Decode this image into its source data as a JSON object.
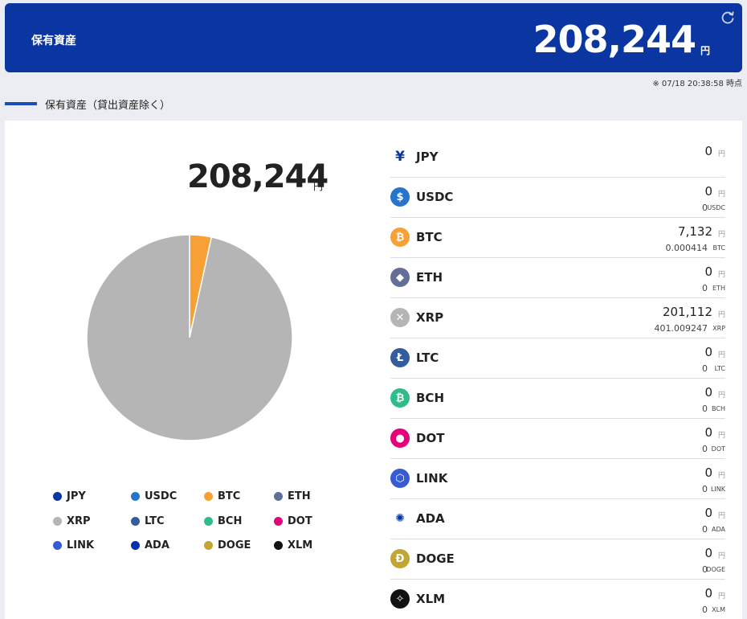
{
  "header": {
    "title": "保有資産",
    "amount": "208,244",
    "unit": "円"
  },
  "timestamp": "※ 07/18 20:38:58 時点",
  "section": {
    "title": "保有資産（貸出資産除く）"
  },
  "panel": {
    "total_amount": "208,244",
    "total_unit": "円"
  },
  "colors": {
    "header_bg": "#0b35a0",
    "JPY": "#0b35a0",
    "USDC": "#2775ca",
    "BTC": "#f7a035",
    "ETH": "#627098",
    "XRP": "#b5b5b5",
    "LTC": "#345d9d",
    "BCH": "#2ebd89",
    "DOT": "#e6007a",
    "LINK": "#375bd2",
    "ADA": "#0033ad",
    "DOGE": "#c2a633",
    "XLM": "#111111"
  },
  "legend": [
    {
      "label": "JPY",
      "color": "#0b35a0"
    },
    {
      "label": "USDC",
      "color": "#2775ca"
    },
    {
      "label": "BTC",
      "color": "#f7a035"
    },
    {
      "label": "ETH",
      "color": "#627098"
    },
    {
      "label": "XRP",
      "color": "#b5b5b5"
    },
    {
      "label": "LTC",
      "color": "#345d9d"
    },
    {
      "label": "BCH",
      "color": "#2ebd89"
    },
    {
      "label": "DOT",
      "color": "#e6007a"
    },
    {
      "label": "LINK",
      "color": "#375bd2"
    },
    {
      "label": "ADA",
      "color": "#0033ad"
    },
    {
      "label": "DOGE",
      "color": "#c2a633"
    },
    {
      "label": "XLM",
      "color": "#111111"
    }
  ],
  "chart_data": {
    "type": "pie",
    "categories": [
      "JPY",
      "USDC",
      "BTC",
      "ETH",
      "XRP",
      "LTC",
      "BCH",
      "DOT",
      "LINK",
      "ADA",
      "DOGE",
      "XLM"
    ],
    "values": [
      0,
      0,
      7132,
      0,
      201112,
      0,
      0,
      0,
      0,
      0,
      0,
      0
    ],
    "title": ""
  },
  "assets": [
    {
      "name": "JPY",
      "icon": "yen-icon",
      "glyph": "¥",
      "jpy": "0",
      "jpy_unit": "円",
      "qty": "",
      "qty_unit": ""
    },
    {
      "name": "USDC",
      "icon": "usdc-icon",
      "glyph": "$",
      "jpy": "0",
      "jpy_unit": "円",
      "qty": "0",
      "qty_unit": "USDC"
    },
    {
      "name": "BTC",
      "icon": "bitcoin-icon",
      "glyph": "₿",
      "jpy": "7,132",
      "jpy_unit": "円",
      "qty": "0.000414",
      "qty_unit": "BTC"
    },
    {
      "name": "ETH",
      "icon": "ethereum-icon",
      "glyph": "◆",
      "jpy": "0",
      "jpy_unit": "円",
      "qty": "0",
      "qty_unit": "ETH"
    },
    {
      "name": "XRP",
      "icon": "xrp-icon",
      "glyph": "✕",
      "jpy": "201,112",
      "jpy_unit": "円",
      "qty": "401.009247",
      "qty_unit": "XRP"
    },
    {
      "name": "LTC",
      "icon": "litecoin-icon",
      "glyph": "Ł",
      "jpy": "0",
      "jpy_unit": "円",
      "qty": "0",
      "qty_unit": "LTC"
    },
    {
      "name": "BCH",
      "icon": "bitcoin-cash-icon",
      "glyph": "₿",
      "jpy": "0",
      "jpy_unit": "円",
      "qty": "0",
      "qty_unit": "BCH"
    },
    {
      "name": "DOT",
      "icon": "polkadot-icon",
      "glyph": "●",
      "jpy": "0",
      "jpy_unit": "円",
      "qty": "0",
      "qty_unit": "DOT"
    },
    {
      "name": "LINK",
      "icon": "chainlink-icon",
      "glyph": "⬡",
      "jpy": "0",
      "jpy_unit": "円",
      "qty": "0",
      "qty_unit": "LINK"
    },
    {
      "name": "ADA",
      "icon": "cardano-icon",
      "glyph": "✺",
      "jpy": "0",
      "jpy_unit": "円",
      "qty": "0",
      "qty_unit": "ADA"
    },
    {
      "name": "DOGE",
      "icon": "dogecoin-icon",
      "glyph": "Ð",
      "jpy": "0",
      "jpy_unit": "円",
      "qty": "0",
      "qty_unit": "DOGE"
    },
    {
      "name": "XLM",
      "icon": "stellar-icon",
      "glyph": "✧",
      "jpy": "0",
      "jpy_unit": "円",
      "qty": "0",
      "qty_unit": "XLM"
    }
  ]
}
